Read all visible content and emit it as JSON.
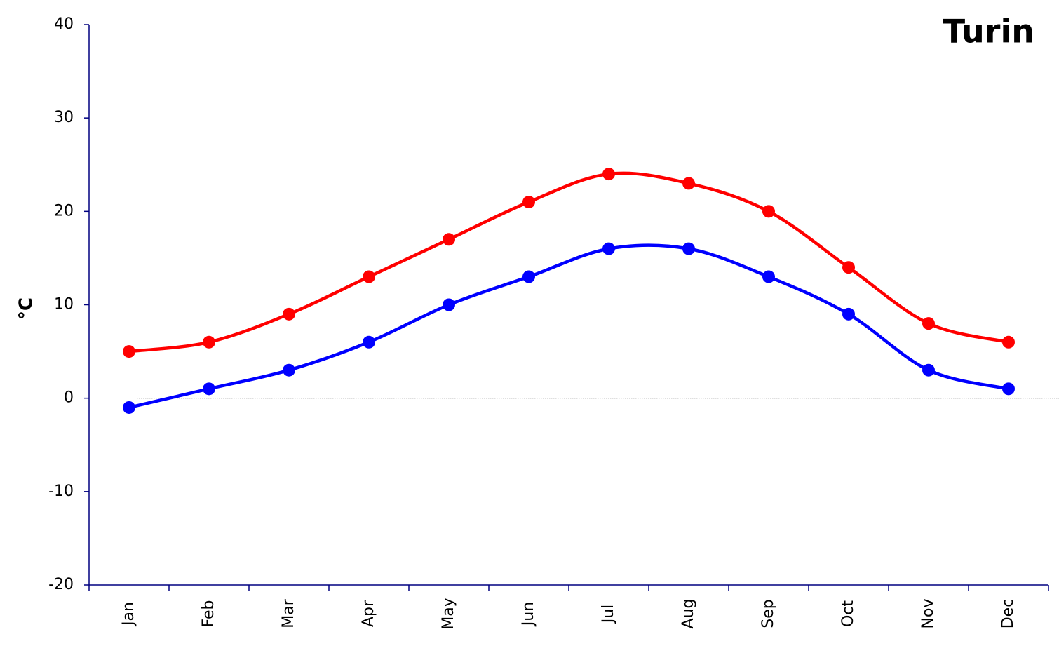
{
  "chart_data": {
    "type": "line",
    "title": "Turin",
    "y_label": "°C",
    "categories": [
      "Jan",
      "Feb",
      "Mar",
      "Apr",
      "May",
      "Jun",
      "Jul",
      "Aug",
      "Sep",
      "Oct",
      "Nov",
      "Dec"
    ],
    "series": [
      {
        "color": "#ff0000",
        "values": [
          5,
          6,
          9,
          13,
          17,
          21,
          24,
          23,
          20,
          14,
          8,
          6
        ]
      },
      {
        "color": "#0000ff",
        "values": [
          -1,
          1,
          3,
          6,
          10,
          13,
          16,
          16,
          13,
          9,
          3,
          1
        ]
      }
    ],
    "ylim": [
      -20,
      40
    ],
    "yticks": [
      -20,
      -10,
      0,
      10,
      20,
      30,
      40
    ],
    "smooth": true,
    "zero_line": true
  }
}
